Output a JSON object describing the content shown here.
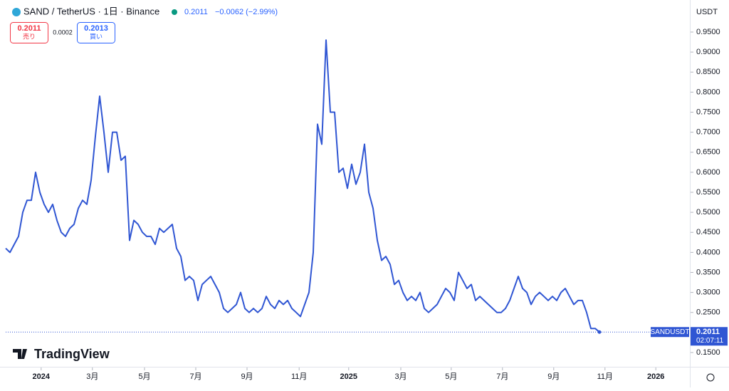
{
  "header": {
    "symbol": "SAND / TetherUS · 1日 · Binance",
    "price": "0.2011",
    "change": "−0.0062 (−2.99%)",
    "sell_price": "0.2011",
    "sell_label": "売り",
    "spread": "0.0002",
    "buy_price": "0.2013",
    "buy_label": "買い",
    "currency": "USDT",
    "logo": "TradingView"
  },
  "chart_data": {
    "type": "line",
    "series": [
      {
        "name": "SANDUSDT",
        "color": "#3056d3",
        "values": [
          0.41,
          0.4,
          0.42,
          0.44,
          0.5,
          0.53,
          0.53,
          0.6,
          0.55,
          0.52,
          0.5,
          0.52,
          0.48,
          0.45,
          0.44,
          0.46,
          0.47,
          0.51,
          0.53,
          0.52,
          0.58,
          0.69,
          0.79,
          0.7,
          0.6,
          0.7,
          0.7,
          0.63,
          0.64,
          0.43,
          0.48,
          0.47,
          0.45,
          0.44,
          0.44,
          0.42,
          0.46,
          0.45,
          0.46,
          0.47,
          0.41,
          0.39,
          0.33,
          0.34,
          0.33,
          0.28,
          0.32,
          0.33,
          0.34,
          0.32,
          0.3,
          0.26,
          0.25,
          0.26,
          0.27,
          0.3,
          0.26,
          0.25,
          0.26,
          0.25,
          0.26,
          0.29,
          0.27,
          0.26,
          0.28,
          0.27,
          0.28,
          0.26,
          0.25,
          0.24,
          0.27,
          0.3,
          0.4,
          0.72,
          0.67,
          0.93,
          0.75,
          0.75,
          0.6,
          0.61,
          0.56,
          0.62,
          0.57,
          0.6,
          0.67,
          0.55,
          0.51,
          0.43,
          0.38,
          0.39,
          0.37,
          0.32,
          0.33,
          0.3,
          0.28,
          0.29,
          0.28,
          0.3,
          0.26,
          0.25,
          0.26,
          0.27,
          0.29,
          0.31,
          0.3,
          0.28,
          0.35,
          0.33,
          0.31,
          0.32,
          0.28,
          0.29,
          0.28,
          0.27,
          0.26,
          0.25,
          0.25,
          0.26,
          0.28,
          0.31,
          0.34,
          0.31,
          0.3,
          0.27,
          0.29,
          0.3,
          0.29,
          0.28,
          0.29,
          0.28,
          0.3,
          0.31,
          0.29,
          0.27,
          0.28,
          0.28,
          0.25,
          0.21,
          0.21,
          0.2011
        ]
      }
    ],
    "price_line": 0.2011,
    "countdown": "02:07:11",
    "xlim": [
      0,
      160
    ],
    "xticks": [
      {
        "value": 8.3,
        "label": "2024"
      },
      {
        "value": 20.3,
        "label": "3月"
      },
      {
        "value": 32.5,
        "label": "5月"
      },
      {
        "value": 44.5,
        "label": "7月"
      },
      {
        "value": 56.5,
        "label": "9月"
      },
      {
        "value": 68.7,
        "label": "11月"
      },
      {
        "value": 80.3,
        "label": "2025"
      },
      {
        "value": 92.5,
        "label": "3月"
      },
      {
        "value": 104.3,
        "label": "5月"
      },
      {
        "value": 116.3,
        "label": "7月"
      },
      {
        "value": 128.3,
        "label": "9月"
      },
      {
        "value": 140.3,
        "label": "11月"
      },
      {
        "value": 152.2,
        "label": "2026"
      }
    ],
    "ylim": [
      0.1144,
      1.0211
    ],
    "yticks": [
      {
        "value": 0.15,
        "label": "0.1500"
      },
      {
        "value": 0.25,
        "label": "0.2500"
      },
      {
        "value": 0.3,
        "label": "0.3000"
      },
      {
        "value": 0.35,
        "label": "0.3500"
      },
      {
        "value": 0.4,
        "label": "0.4000"
      },
      {
        "value": 0.45,
        "label": "0.4500"
      },
      {
        "value": 0.5,
        "label": "0.5000"
      },
      {
        "value": 0.55,
        "label": "0.5500"
      },
      {
        "value": 0.6,
        "label": "0.6000"
      },
      {
        "value": 0.65,
        "label": "0.6500"
      },
      {
        "value": 0.7,
        "label": "0.7000"
      },
      {
        "value": 0.75,
        "label": "0.7500"
      },
      {
        "value": 0.8,
        "label": "0.8000"
      },
      {
        "value": 0.85,
        "label": "0.8500"
      },
      {
        "value": 0.9,
        "label": "0.9000"
      },
      {
        "value": 0.95,
        "label": "0.9500"
      }
    ],
    "grid": false
  }
}
